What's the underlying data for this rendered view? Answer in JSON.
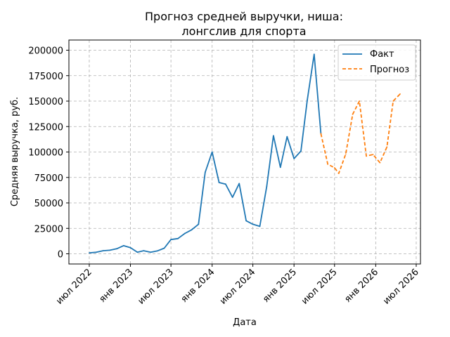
{
  "chart_data": {
    "type": "line",
    "title_lines": [
      "Прогноз средней выручки, ниша:",
      "лонгслив для спорта"
    ],
    "xlabel": "Дата",
    "ylabel": "Средняя выручка, руб.",
    "x_range": [
      "2022-04-01",
      "2026-07-20"
    ],
    "ylim": [
      -10000,
      210000
    ],
    "grid": true,
    "legend_position": "top-right",
    "x_ticks": [
      {
        "date": "2022-07-01",
        "label": "июл 2022"
      },
      {
        "date": "2023-01-01",
        "label": "янв 2023"
      },
      {
        "date": "2023-07-01",
        "label": "июл 2023"
      },
      {
        "date": "2024-01-01",
        "label": "янв 2024"
      },
      {
        "date": "2024-07-01",
        "label": "июл 2024"
      },
      {
        "date": "2025-01-01",
        "label": "янв 2025"
      },
      {
        "date": "2025-07-01",
        "label": "июл 2025"
      },
      {
        "date": "2026-01-01",
        "label": "янв 2026"
      },
      {
        "date": "2026-07-01",
        "label": "июл 2026"
      }
    ],
    "y_ticks": [
      {
        "value": 0,
        "label": "0"
      },
      {
        "value": 25000,
        "label": "25000"
      },
      {
        "value": 50000,
        "label": "50000"
      },
      {
        "value": 75000,
        "label": "75000"
      },
      {
        "value": 100000,
        "label": "100000"
      },
      {
        "value": 125000,
        "label": "125000"
      },
      {
        "value": 150000,
        "label": "150000"
      },
      {
        "value": 175000,
        "label": "175000"
      },
      {
        "value": 200000,
        "label": "200000"
      }
    ],
    "series": [
      {
        "name": "Факт",
        "color": "#1f77b4",
        "style": "solid",
        "points": [
          {
            "x": "2022-07-01",
            "y": 1000
          },
          {
            "x": "2022-08-01",
            "y": 1500
          },
          {
            "x": "2022-09-01",
            "y": 3000
          },
          {
            "x": "2022-10-01",
            "y": 3500
          },
          {
            "x": "2022-11-01",
            "y": 5000
          },
          {
            "x": "2022-12-01",
            "y": 8000
          },
          {
            "x": "2023-01-01",
            "y": 6000
          },
          {
            "x": "2023-02-01",
            "y": 1500
          },
          {
            "x": "2023-03-01",
            "y": 3000
          },
          {
            "x": "2023-04-01",
            "y": 1500
          },
          {
            "x": "2023-05-01",
            "y": 2800
          },
          {
            "x": "2023-06-01",
            "y": 5500
          },
          {
            "x": "2023-07-01",
            "y": 14000
          },
          {
            "x": "2023-08-01",
            "y": 15000
          },
          {
            "x": "2023-09-01",
            "y": 20000
          },
          {
            "x": "2023-10-01",
            "y": 23500
          },
          {
            "x": "2023-11-01",
            "y": 29000
          },
          {
            "x": "2023-12-01",
            "y": 80000
          },
          {
            "x": "2024-01-01",
            "y": 100000
          },
          {
            "x": "2024-02-01",
            "y": 70000
          },
          {
            "x": "2024-03-01",
            "y": 68500
          },
          {
            "x": "2024-04-01",
            "y": 55500
          },
          {
            "x": "2024-05-01",
            "y": 69000
          },
          {
            "x": "2024-06-01",
            "y": 32500
          },
          {
            "x": "2024-07-01",
            "y": 29000
          },
          {
            "x": "2024-08-01",
            "y": 27000
          },
          {
            "x": "2024-09-01",
            "y": 66000
          },
          {
            "x": "2024-10-01",
            "y": 116000
          },
          {
            "x": "2024-11-01",
            "y": 85000
          },
          {
            "x": "2024-12-01",
            "y": 115000
          },
          {
            "x": "2025-01-01",
            "y": 93500
          },
          {
            "x": "2025-02-01",
            "y": 101000
          },
          {
            "x": "2025-03-01",
            "y": 151000
          },
          {
            "x": "2025-04-01",
            "y": 196000
          },
          {
            "x": "2025-05-01",
            "y": 118000
          }
        ]
      },
      {
        "name": "Прогноз",
        "color": "#ff7f0e",
        "style": "dashed",
        "points": [
          {
            "x": "2025-05-01",
            "y": 118000
          },
          {
            "x": "2025-06-01",
            "y": 88000
          },
          {
            "x": "2025-07-01",
            "y": 84500
          },
          {
            "x": "2025-07-20",
            "y": 79000
          },
          {
            "x": "2025-08-20",
            "y": 98000
          },
          {
            "x": "2025-09-20",
            "y": 137000
          },
          {
            "x": "2025-10-20",
            "y": 150000
          },
          {
            "x": "2025-11-20",
            "y": 96000
          },
          {
            "x": "2025-12-20",
            "y": 97500
          },
          {
            "x": "2026-01-20",
            "y": 89500
          },
          {
            "x": "2026-02-20",
            "y": 105000
          },
          {
            "x": "2026-03-20",
            "y": 150000
          },
          {
            "x": "2026-04-20",
            "y": 157000
          }
        ]
      }
    ]
  }
}
